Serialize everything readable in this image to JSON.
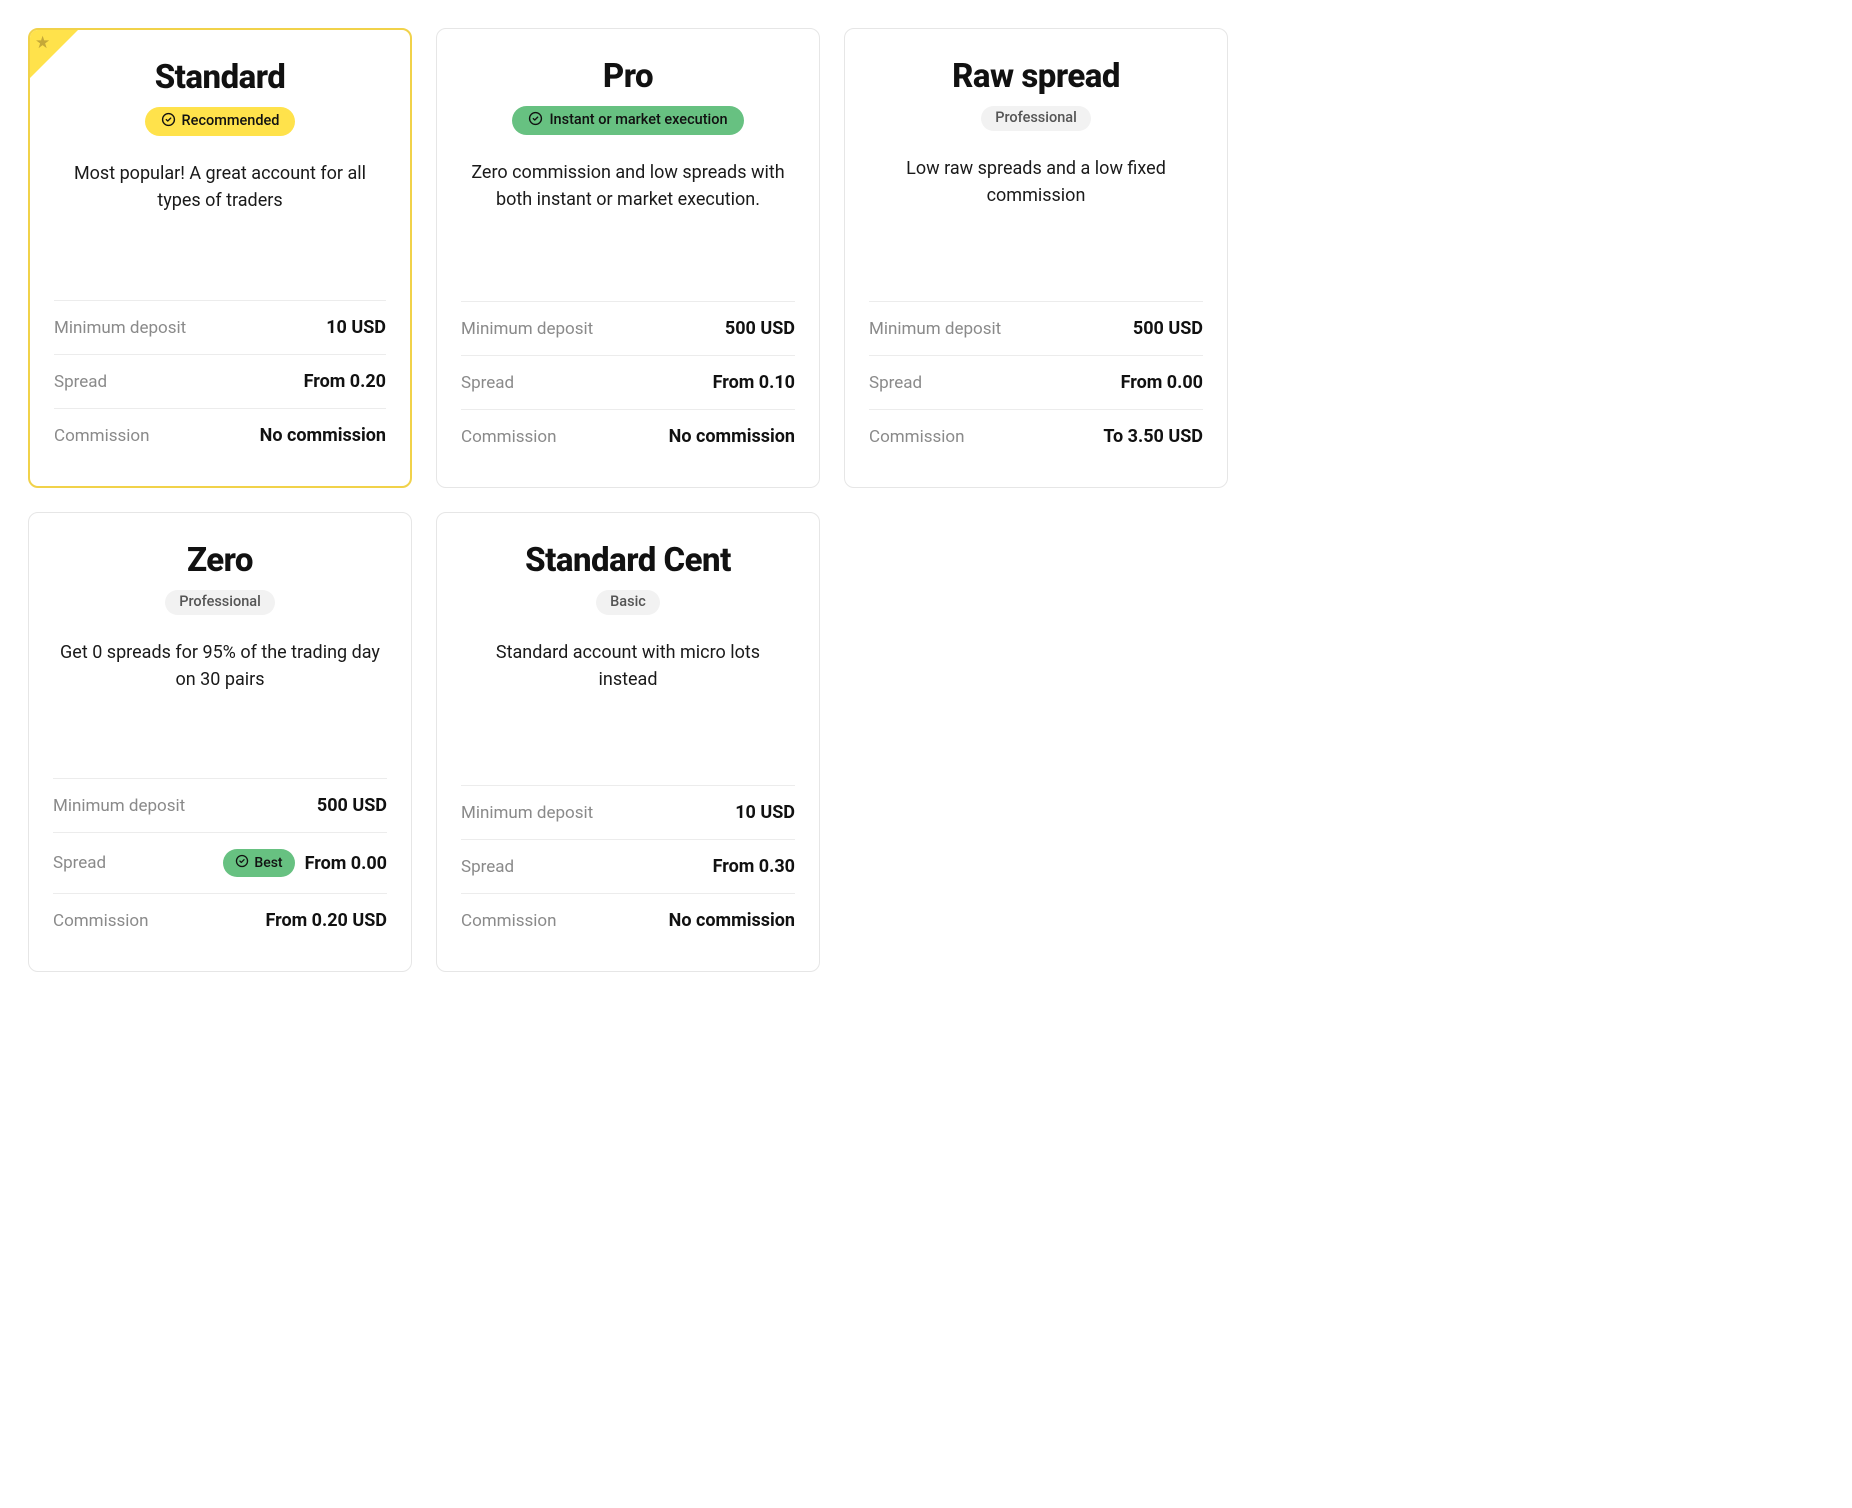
{
  "colors": {
    "selected_border": "#f1d24a",
    "ribbon": "#ffe24b",
    "star": "#c5a838",
    "badge_yellow_bg": "#ffe24b",
    "badge_yellow_fg": "#111111",
    "badge_green_bg": "#67c181",
    "badge_green_fg": "#111111",
    "badge_plain_bg": "#f2f2f2",
    "badge_plain_fg": "#555555",
    "card_border": "#e6e6e6",
    "divider": "#ececec",
    "label_muted": "#8a8a8a",
    "text": "#111111",
    "background": "#ffffff"
  },
  "spec_labels": {
    "min_deposit": "Minimum deposit",
    "spread": "Spread",
    "commission": "Commission"
  },
  "cards": [
    {
      "id": "standard",
      "title": "Standard",
      "selected": true,
      "corner_star": true,
      "badge": {
        "style": "yellow",
        "icon": "check-circle",
        "text": "Recommended"
      },
      "description": "Most popular! A great account for all types of traders",
      "min_deposit": "10 USD",
      "spread": "From 0.20",
      "spread_tag": null,
      "commission": "No commission"
    },
    {
      "id": "pro",
      "title": "Pro",
      "selected": false,
      "corner_star": false,
      "badge": {
        "style": "green",
        "icon": "check-circle",
        "text": "Instant or market execution"
      },
      "description": "Zero commission and low spreads with both instant or market execution.",
      "min_deposit": "500 USD",
      "spread": "From 0.10",
      "spread_tag": null,
      "commission": "No commission"
    },
    {
      "id": "raw-spread",
      "title": "Raw spread",
      "selected": false,
      "corner_star": false,
      "badge": {
        "style": "plain",
        "icon": null,
        "text": "Professional"
      },
      "description": "Low raw spreads and a low fixed commission",
      "min_deposit": "500 USD",
      "spread": "From 0.00",
      "spread_tag": null,
      "commission": "To 3.50 USD"
    },
    {
      "id": "zero",
      "title": "Zero",
      "selected": false,
      "corner_star": false,
      "badge": {
        "style": "plain",
        "icon": null,
        "text": "Professional"
      },
      "description": "Get 0 spreads for 95% of the trading day on 30 pairs",
      "min_deposit": "500 USD",
      "spread": "From 0.00",
      "spread_tag": {
        "style": "green",
        "icon": "check-circle",
        "text": "Best"
      },
      "commission": "From 0.20 USD"
    },
    {
      "id": "standard-cent",
      "title": "Standard Cent",
      "selected": false,
      "corner_star": false,
      "badge": {
        "style": "plain",
        "icon": null,
        "text": "Basic"
      },
      "description": "Standard account with micro lots instead",
      "min_deposit": "10 USD",
      "spread": "From 0.30",
      "spread_tag": null,
      "commission": "No commission"
    }
  ]
}
